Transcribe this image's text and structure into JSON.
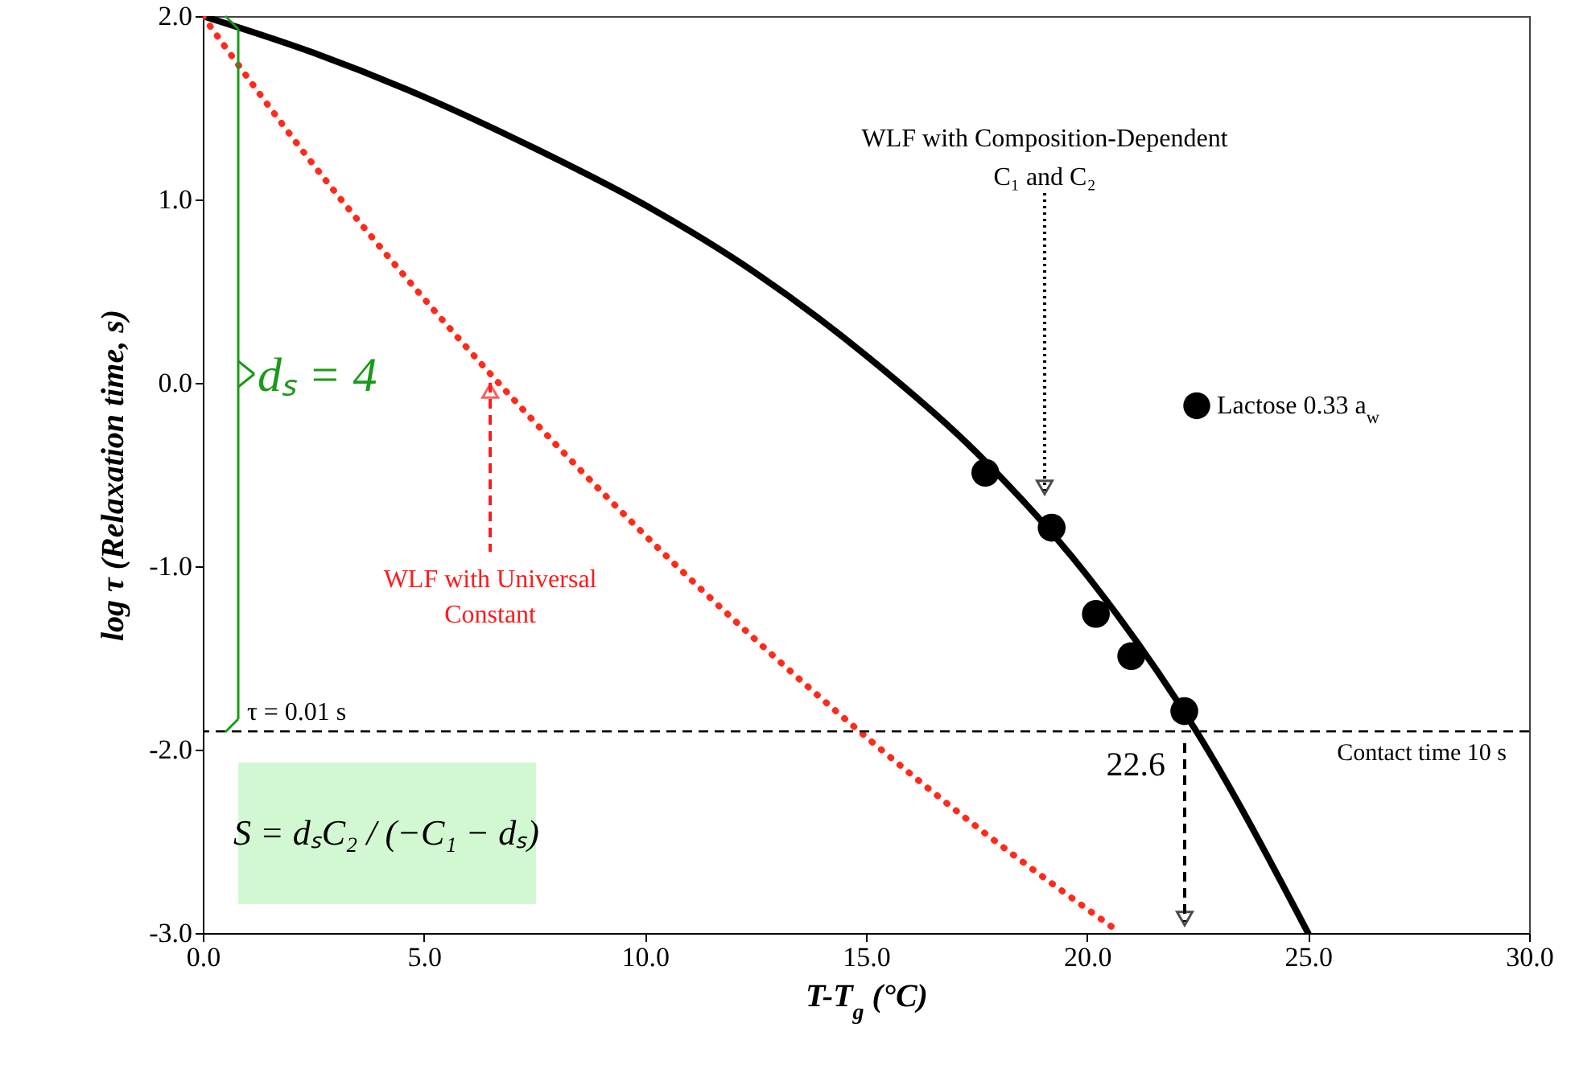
{
  "chart_data": {
    "type": "line",
    "xlabel": "T-T$_{g}$ (°C)",
    "ylabel": "log τ (Relaxation time, s)",
    "xlim": [
      0,
      30
    ],
    "xticks": [
      {
        "value": 0,
        "label": "0.0"
      },
      {
        "value": 5,
        "label": "5.0"
      },
      {
        "value": 10,
        "label": "10.0"
      },
      {
        "value": 15,
        "label": "15.0"
      },
      {
        "value": 20,
        "label": "20.0"
      },
      {
        "value": 25,
        "label": "25.0"
      },
      {
        "value": 30,
        "label": "30.0"
      }
    ],
    "ylim": [
      -3,
      2
    ],
    "yticks": [
      {
        "value": -3,
        "label": "-3.0"
      },
      {
        "value": -2,
        "label": "-2.0"
      },
      {
        "value": -1,
        "label": "-1.0"
      },
      {
        "value": 0,
        "label": "0.0"
      },
      {
        "value": 1,
        "label": "1.0"
      },
      {
        "value": 2,
        "label": "2.0"
      }
    ],
    "legend": "right",
    "series": [
      {
        "color": "#000000",
        "line_style": "solid",
        "x": [
          0,
          2.5,
          5,
          7.5,
          10,
          12.5,
          15,
          17.5,
          20,
          22.5,
          25
        ],
        "values": [
          2.0,
          1.8,
          1.56,
          1.28,
          0.97,
          0.6,
          0.15,
          -0.38,
          -1.05,
          -1.91,
          -3.0
        ]
      },
      {
        "color": "#ff2a1a",
        "line_style": "dotted",
        "x": [
          0,
          2.5,
          5,
          6.5,
          10,
          12.5,
          15,
          17.5,
          20.7
        ],
        "values": [
          2.0,
          1.19,
          0.46,
          0.05,
          -0.83,
          -1.4,
          -1.93,
          -2.42,
          -2.99
        ]
      },
      {
        "type": "scatter",
        "name": "Lactose 0.33 a$_{w}$",
        "color": "#000000",
        "marker": "circle",
        "x": [
          17.7,
          19.2,
          20.2,
          21.0,
          22.2
        ],
        "values": [
          -0.49,
          -0.79,
          -1.26,
          -1.49,
          -1.79
        ]
      }
    ],
    "ref_lines": [
      {
        "axis": "y",
        "value": -1.9,
        "label": "Contact time 10 s",
        "line_style": "dashed",
        "color": "#000000"
      }
    ],
    "annotations": [
      "WLF with Composition-Dependent\nC₁ and C₂",
      {
        "text": "WLF with Universal\nConstant",
        "x": 6.5,
        "y": 0.0
      },
      "22.6",
      {
        "text": "τ = 0.01 s",
        "x": 1.0,
        "y": -1.9
      },
      "dₛ = 4",
      "S = dₛC₂ / (−C₁ − dₛ)"
    ]
  }
}
